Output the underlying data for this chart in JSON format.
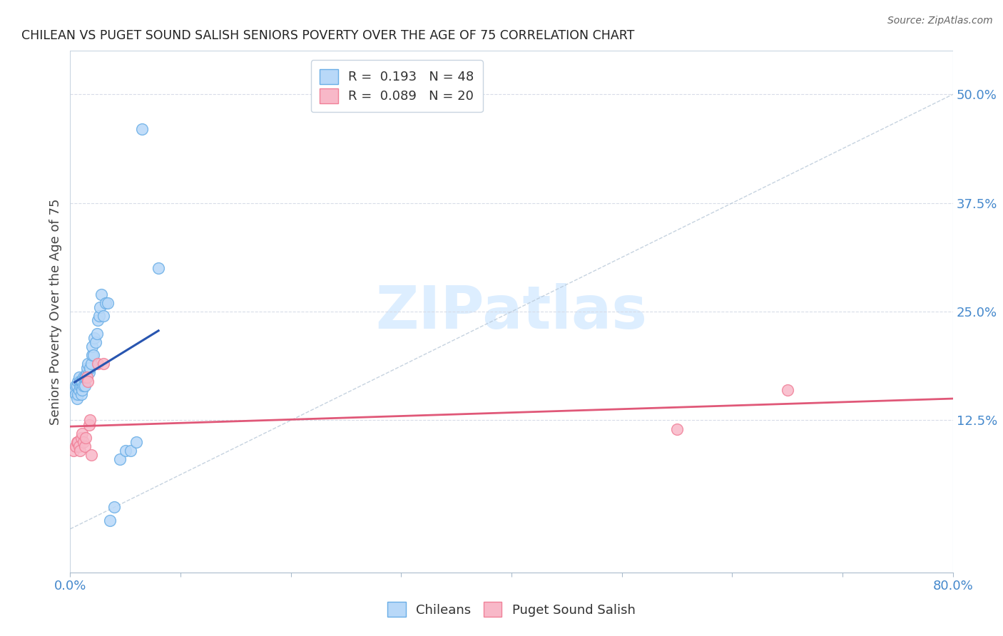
{
  "title": "CHILEAN VS PUGET SOUND SALISH SENIORS POVERTY OVER THE AGE OF 75 CORRELATION CHART",
  "source": "Source: ZipAtlas.com",
  "ylabel": "Seniors Poverty Over the Age of 75",
  "xlim": [
    0.0,
    0.8
  ],
  "ylim": [
    -0.05,
    0.55
  ],
  "xtick_positions": [
    0.0,
    0.1,
    0.2,
    0.3,
    0.4,
    0.5,
    0.6,
    0.7,
    0.8
  ],
  "xticklabels": [
    "0.0%",
    "",
    "",
    "",
    "",
    "",
    "",
    "",
    "80.0%"
  ],
  "ytick_right_positions": [
    0.125,
    0.25,
    0.375,
    0.5
  ],
  "ytick_right_labels": [
    "12.5%",
    "25.0%",
    "37.5%",
    "50.0%"
  ],
  "legend_top": [
    {
      "label": "R =  0.193   N = 48",
      "face": "#b8d8f8",
      "edge": "#6aaee6"
    },
    {
      "label": "R =  0.089   N = 20",
      "face": "#f8b8c8",
      "edge": "#f08098"
    }
  ],
  "legend_bottom": [
    "Chileans",
    "Puget Sound Salish"
  ],
  "chilean_x": [
    0.004,
    0.005,
    0.005,
    0.006,
    0.006,
    0.007,
    0.007,
    0.008,
    0.008,
    0.009,
    0.009,
    0.01,
    0.01,
    0.01,
    0.011,
    0.011,
    0.012,
    0.012,
    0.013,
    0.013,
    0.014,
    0.015,
    0.015,
    0.016,
    0.017,
    0.018,
    0.019,
    0.02,
    0.02,
    0.021,
    0.022,
    0.023,
    0.024,
    0.025,
    0.026,
    0.027,
    0.028,
    0.03,
    0.032,
    0.034,
    0.036,
    0.04,
    0.045,
    0.05,
    0.055,
    0.06,
    0.065,
    0.08
  ],
  "chilean_y": [
    0.16,
    0.155,
    0.165,
    0.15,
    0.165,
    0.155,
    0.17,
    0.16,
    0.175,
    0.165,
    0.17,
    0.155,
    0.165,
    0.17,
    0.16,
    0.17,
    0.165,
    0.175,
    0.165,
    0.175,
    0.175,
    0.18,
    0.185,
    0.19,
    0.18,
    0.185,
    0.19,
    0.2,
    0.21,
    0.2,
    0.22,
    0.215,
    0.225,
    0.24,
    0.245,
    0.255,
    0.27,
    0.245,
    0.26,
    0.26,
    0.01,
    0.025,
    0.08,
    0.09,
    0.09,
    0.1,
    0.46,
    0.3
  ],
  "puget_x": [
    0.003,
    0.005,
    0.006,
    0.007,
    0.008,
    0.009,
    0.01,
    0.011,
    0.012,
    0.013,
    0.014,
    0.015,
    0.016,
    0.017,
    0.018,
    0.019,
    0.025,
    0.03,
    0.55,
    0.65
  ],
  "puget_y": [
    0.09,
    0.095,
    0.1,
    0.1,
    0.095,
    0.09,
    0.105,
    0.11,
    0.1,
    0.095,
    0.105,
    0.175,
    0.17,
    0.12,
    0.125,
    0.085,
    0.19,
    0.19,
    0.115,
    0.16
  ],
  "chilean_face": "#b8d8f8",
  "chilean_edge": "#6aaee6",
  "puget_face": "#f8b8c8",
  "puget_edge": "#f08098",
  "reg_chilean_color": "#2855b0",
  "reg_puget_color": "#e05878",
  "diag_color": "#b8c8d8",
  "grid_color": "#d8dce8",
  "bg_color": "#ffffff",
  "tick_label_color": "#4488cc",
  "watermark_text": "ZIPatlas",
  "watermark_color": "#ddeeff"
}
